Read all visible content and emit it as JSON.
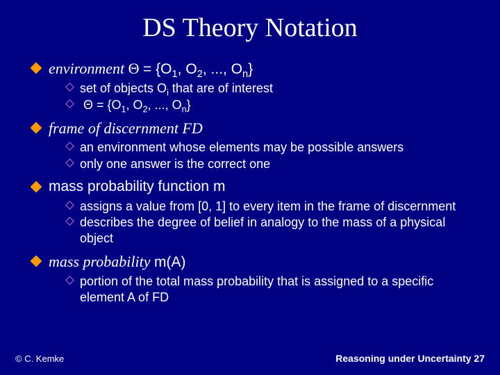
{
  "title": "DS Theory Notation",
  "items": [
    {
      "heading_html": "environment <span class='theta'>Θ</span> <span class='upright'>= {O<sub>1</sub>, O<sub>2</sub>, ..., O<sub>n</sub>}</span>",
      "subs": [
        "set of objects O<sub>i</sub> that are of interest",
        "&nbsp;Θ = {O<sub>1</sub>, O<sub>2</sub>, ..., O<sub>n</sub>}"
      ]
    },
    {
      "heading_html": "frame of discernment FD",
      "subs": [
        "an environment whose elements may be possible answers",
        "only one answer is the correct one"
      ]
    },
    {
      "heading_html": "<span class='upright' style='font-family:Arial'>mass probability function m</span>",
      "heading_plain": true,
      "subs": [
        "assigns a value from [0, 1] to every item in the frame of discernment",
        "describes the degree of belief in analogy to the mass of a physical object"
      ]
    },
    {
      "heading_html": "mass probability <span class='upright'>m(A)</span>",
      "subs": [
        "portion of the total mass probability that is assigned to a specific element A of FD"
      ]
    }
  ],
  "footer_left": "© C. Kemke",
  "footer_right": "Reasoning under Uncertainty 27",
  "colors": {
    "background": "#000083",
    "text": "#ffffff",
    "bullet_fill": "#ff9900",
    "sub_bullet_border": "#cc66cc"
  }
}
